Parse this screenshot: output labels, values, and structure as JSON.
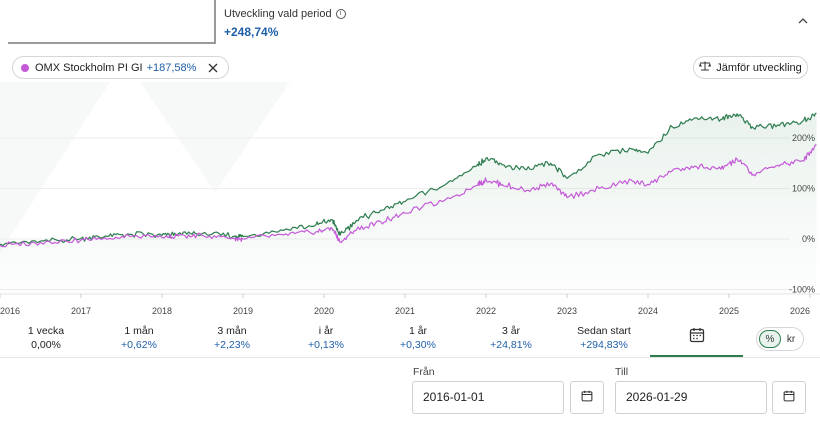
{
  "header": {
    "period_label": "Utveckling vald period",
    "info_icon": "info-icon",
    "period_value": "+248,74%",
    "collapse_icon": "chevron-up-icon"
  },
  "series_chip": {
    "name": "OMX Stockholm PI GI",
    "change": "+187,58%",
    "color": "#c45ad8",
    "close_icon": "close-icon"
  },
  "compare_button": {
    "label": "Jämför utveckling",
    "icon": "scale-icon"
  },
  "chart_data": {
    "type": "line",
    "x_ticks": [
      "2016",
      "2017",
      "2018",
      "2019",
      "2020",
      "2021",
      "2022",
      "2023",
      "2024",
      "2025",
      "2026"
    ],
    "y_ticks": [
      "200%",
      "100%",
      "0%",
      "-100%"
    ],
    "ylim": [
      -100,
      250
    ],
    "series": [
      {
        "color": "#2e7d4f",
        "x": [
          2016.0,
          2016.5,
          2017.0,
          2017.3,
          2017.6,
          2018.0,
          2018.2,
          2018.5,
          2018.9,
          2019.0,
          2019.5,
          2019.9,
          2020.1,
          2020.2,
          2020.4,
          2020.7,
          2021.0,
          2021.5,
          2021.9,
          2022.0,
          2022.2,
          2022.5,
          2022.8,
          2023.0,
          2023.4,
          2023.8,
          2024.0,
          2024.3,
          2024.6,
          2024.9,
          2025.1,
          2025.3,
          2025.6,
          2025.9,
          2026.08
        ],
        "y": [
          -10,
          -4,
          1,
          6,
          9,
          7,
          10,
          11,
          6,
          5,
          17,
          28,
          38,
          8,
          37,
          57,
          74,
          108,
          148,
          160,
          147,
          137,
          150,
          120,
          168,
          178,
          170,
          222,
          240,
          237,
          248,
          220,
          226,
          232,
          249
        ]
      },
      {
        "color": "#c45ad8",
        "x": [
          2016.0,
          2016.5,
          2017.0,
          2017.3,
          2017.6,
          2018.0,
          2018.2,
          2018.5,
          2018.9,
          2019.0,
          2019.5,
          2019.9,
          2020.1,
          2020.2,
          2020.4,
          2020.7,
          2021.0,
          2021.5,
          2021.9,
          2022.0,
          2022.2,
          2022.5,
          2022.8,
          2023.0,
          2023.4,
          2023.8,
          2024.0,
          2024.3,
          2024.6,
          2024.9,
          2025.1,
          2025.3,
          2025.6,
          2025.9,
          2026.08
        ],
        "y": [
          -13,
          -7,
          -2,
          2,
          5,
          3,
          6,
          7,
          1,
          0,
          8,
          14,
          21,
          -6,
          18,
          34,
          51,
          78,
          107,
          117,
          108,
          96,
          110,
          82,
          100,
          116,
          108,
          135,
          143,
          138,
          158,
          128,
          146,
          155,
          186
        ]
      }
    ]
  },
  "presets": [
    {
      "label": "1 vecka",
      "value": "0,00%"
    },
    {
      "label": "1 mån",
      "value": "+0,62%"
    },
    {
      "label": "3 mån",
      "value": "+2,23%"
    },
    {
      "label": "i år",
      "value": "+0,13%"
    },
    {
      "label": "1 år",
      "value": "+0,30%"
    },
    {
      "label": "3 år",
      "value": "+24,81%"
    },
    {
      "label": "Sedan start",
      "value": "+294,83%"
    }
  ],
  "calendar_tab_icon": "calendar-icon",
  "unit_toggle": {
    "percent": "%",
    "currency": "kr",
    "selected": "%"
  },
  "date_range": {
    "from_label": "Från",
    "from_value": "2016-01-01",
    "to_label": "Till",
    "to_value": "2026-01-29",
    "calendar_icon": "calendar-icon"
  }
}
